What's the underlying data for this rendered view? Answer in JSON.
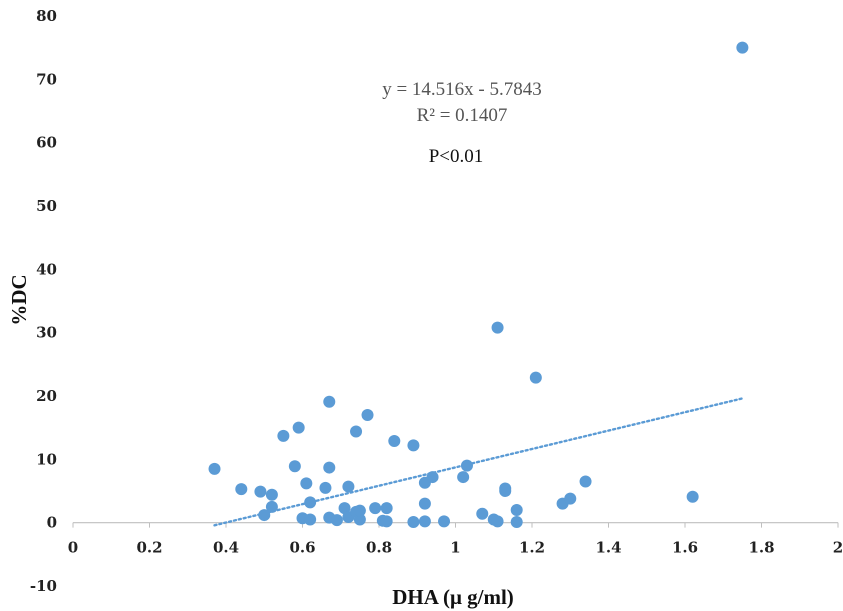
{
  "chart_data": {
    "type": "scatter",
    "xlabel": "DHA (μ g/ml)",
    "ylabel": "%DC",
    "xlim": [
      0,
      2
    ],
    "ylim": [
      -10,
      80
    ],
    "x_ticks": [
      0,
      0.2,
      0.4,
      0.6,
      0.8,
      1,
      1.2,
      1.4,
      1.6,
      1.8,
      2
    ],
    "x_tick_labels": [
      "0",
      "0.2",
      "0.4",
      "0.6",
      "0.8",
      "1",
      "1.2",
      "1.4",
      "1.6",
      "1.8",
      "2"
    ],
    "y_ticks": [
      -10,
      0,
      10,
      20,
      30,
      40,
      50,
      60,
      70,
      80
    ],
    "y_tick_labels": [
      "-10",
      "0",
      "10",
      "20",
      "30",
      "40",
      "50",
      "60",
      "70",
      "80"
    ],
    "grid": false,
    "legend": "none",
    "point_color": "#5b9bd5",
    "trendline": {
      "type": "linear",
      "slope": 14.516,
      "intercept": -5.7843,
      "x_range": [
        0.37,
        1.75
      ],
      "color": "#5b9bd5",
      "style": "dotted"
    },
    "annotations": {
      "equation": "y = 14.516x - 5.7843",
      "r_squared": "R² = 0.1407",
      "p_value": "P<0.01"
    },
    "points": [
      {
        "x": 0.37,
        "y": 8.5
      },
      {
        "x": 0.44,
        "y": 5.3
      },
      {
        "x": 0.49,
        "y": 4.9
      },
      {
        "x": 0.5,
        "y": 1.2
      },
      {
        "x": 0.52,
        "y": 2.5
      },
      {
        "x": 0.52,
        "y": 4.4
      },
      {
        "x": 0.55,
        "y": 13.7
      },
      {
        "x": 0.58,
        "y": 8.9
      },
      {
        "x": 0.59,
        "y": 15.0
      },
      {
        "x": 0.6,
        "y": 0.7
      },
      {
        "x": 0.61,
        "y": 6.2
      },
      {
        "x": 0.62,
        "y": 3.2
      },
      {
        "x": 0.62,
        "y": 0.5
      },
      {
        "x": 0.66,
        "y": 5.5
      },
      {
        "x": 0.67,
        "y": 19.1
      },
      {
        "x": 0.67,
        "y": 8.7
      },
      {
        "x": 0.67,
        "y": 0.8
      },
      {
        "x": 0.69,
        "y": 0.4
      },
      {
        "x": 0.71,
        "y": 2.3
      },
      {
        "x": 0.72,
        "y": 5.7
      },
      {
        "x": 0.72,
        "y": 0.9
      },
      {
        "x": 0.74,
        "y": 14.4
      },
      {
        "x": 0.74,
        "y": 1.7
      },
      {
        "x": 0.75,
        "y": 0.5
      },
      {
        "x": 0.75,
        "y": 1.9
      },
      {
        "x": 0.77,
        "y": 17.0
      },
      {
        "x": 0.79,
        "y": 2.3
      },
      {
        "x": 0.81,
        "y": 0.3
      },
      {
        "x": 0.82,
        "y": 0.2
      },
      {
        "x": 0.82,
        "y": 2.3
      },
      {
        "x": 0.84,
        "y": 12.9
      },
      {
        "x": 0.89,
        "y": 12.2
      },
      {
        "x": 0.89,
        "y": 0.1
      },
      {
        "x": 0.92,
        "y": 6.3
      },
      {
        "x": 0.92,
        "y": 3.0
      },
      {
        "x": 0.92,
        "y": 0.2
      },
      {
        "x": 0.94,
        "y": 7.2
      },
      {
        "x": 0.97,
        "y": 0.2
      },
      {
        "x": 1.02,
        "y": 7.2
      },
      {
        "x": 1.03,
        "y": 9.0
      },
      {
        "x": 1.07,
        "y": 1.4
      },
      {
        "x": 1.1,
        "y": 0.5
      },
      {
        "x": 1.11,
        "y": 0.2
      },
      {
        "x": 1.11,
        "y": 30.8
      },
      {
        "x": 1.13,
        "y": 5.4
      },
      {
        "x": 1.13,
        "y": 5.0
      },
      {
        "x": 1.16,
        "y": 0.1
      },
      {
        "x": 1.16,
        "y": 2.0
      },
      {
        "x": 1.21,
        "y": 22.9
      },
      {
        "x": 1.28,
        "y": 3.0
      },
      {
        "x": 1.3,
        "y": 3.8
      },
      {
        "x": 1.34,
        "y": 6.5
      },
      {
        "x": 1.62,
        "y": 4.1
      },
      {
        "x": 1.75,
        "y": 75.0
      }
    ]
  }
}
